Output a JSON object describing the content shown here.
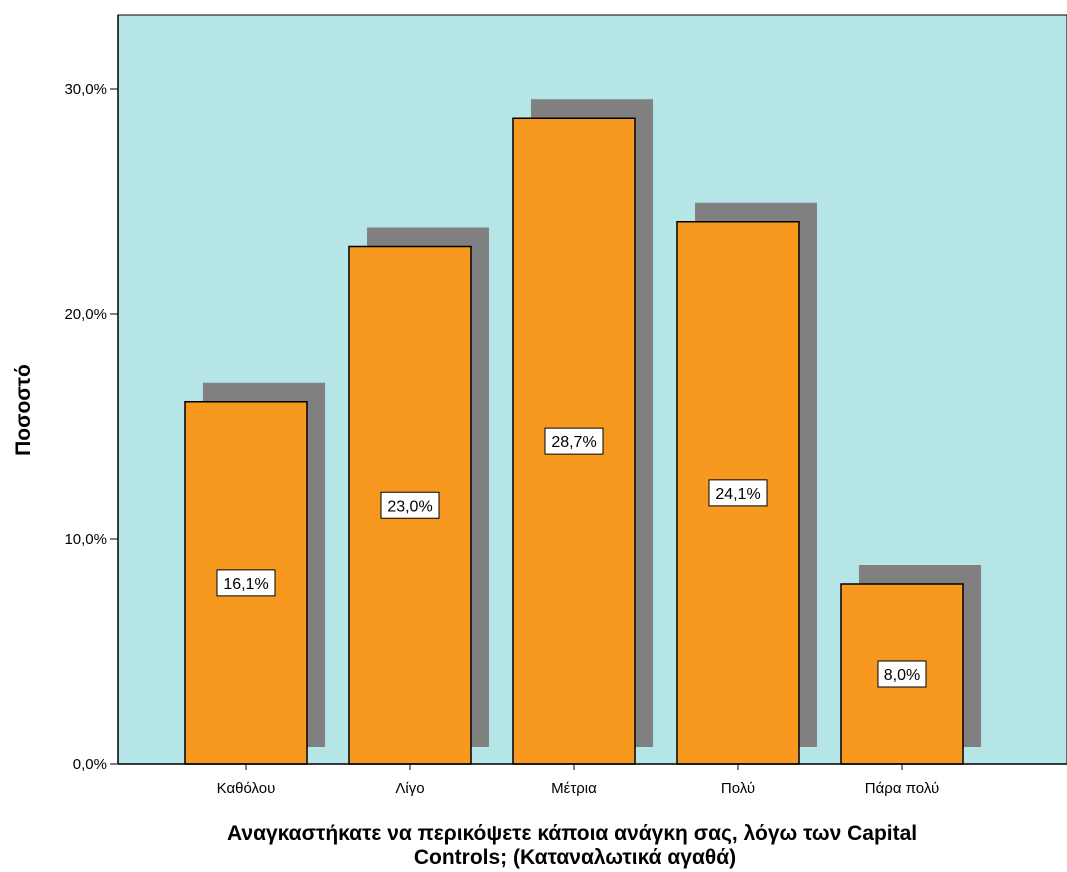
{
  "chart_data": {
    "type": "bar",
    "title": "",
    "categories": [
      "Καθόλου",
      "Λίγο",
      "Μέτρια",
      "Πολύ",
      "Πάρα πολύ"
    ],
    "values": [
      16.1,
      23.0,
      28.7,
      24.1,
      8.0
    ],
    "value_labels": [
      "16,1%",
      "23,0%",
      "28,7%",
      "24,1%",
      "8,0%"
    ],
    "xlabel_lines": [
      "Αναγκαστήκατε να περικόψετε κάποια ανάγκη σας, λόγω των Capital",
      "Controls;  (Καταναλωτικά αγαθά)"
    ],
    "ylabel": "Ποσοστό",
    "yticks": [
      0,
      10,
      20,
      30
    ],
    "ytick_labels": [
      "0,0%",
      "10,0%",
      "20,0%",
      "30,0%"
    ],
    "ylim": [
      0,
      30
    ],
    "grid": false,
    "legend": "none",
    "colors": {
      "plot_background": "#b5e5e7",
      "bar_fill": "#f7991e",
      "bar_shadow": "#808080",
      "bar_stroke": "#000000",
      "label_box": "#ffffff"
    }
  }
}
